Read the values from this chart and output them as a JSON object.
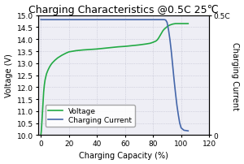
{
  "title": "Charging Characteristics @0.5C 25℃",
  "xlabel": "Charging Capacity (%)",
  "ylabel_left": "Voltage (V)",
  "ylabel_right": "Charging Current",
  "right_ytick_labels": [
    "0",
    "0.5C"
  ],
  "xlim": [
    -2,
    120
  ],
  "ylim_left": [
    10.0,
    15.0
  ],
  "ylim_right": [
    0,
    1
  ],
  "xticks": [
    0,
    20,
    40,
    60,
    80,
    100,
    120
  ],
  "yticks_left": [
    10.0,
    10.5,
    11.0,
    11.5,
    12.0,
    12.5,
    13.0,
    13.5,
    14.0,
    14.5,
    15.0
  ],
  "voltage_color": "#22aa44",
  "current_color": "#4466aa",
  "background_color": "#eeeef5",
  "grid_color": "#bbbbcc",
  "voltage_x": [
    0,
    0.3,
    0.6,
    1.0,
    1.5,
    2.0,
    2.5,
    3,
    4,
    5,
    6,
    7,
    8,
    10,
    12,
    15,
    18,
    20,
    25,
    30,
    35,
    40,
    45,
    50,
    55,
    60,
    65,
    70,
    75,
    78,
    80,
    82,
    83,
    84,
    85,
    86,
    87,
    88,
    89,
    90,
    91,
    92,
    93,
    94,
    95,
    96,
    97,
    98,
    99,
    100,
    101,
    102,
    103,
    105
  ],
  "voltage_y": [
    10.0,
    10.15,
    10.4,
    10.8,
    11.3,
    11.8,
    12.1,
    12.3,
    12.55,
    12.7,
    12.82,
    12.92,
    13.0,
    13.12,
    13.22,
    13.33,
    13.42,
    13.47,
    13.52,
    13.55,
    13.57,
    13.59,
    13.62,
    13.65,
    13.68,
    13.7,
    13.73,
    13.76,
    13.8,
    13.83,
    13.87,
    13.92,
    13.97,
    14.05,
    14.15,
    14.25,
    14.35,
    14.42,
    14.47,
    14.52,
    14.56,
    14.59,
    14.61,
    14.63,
    14.64,
    14.65,
    14.65,
    14.65,
    14.65,
    14.65,
    14.65,
    14.65,
    14.65,
    14.65
  ],
  "current_x": [
    0,
    1,
    5,
    10,
    20,
    30,
    40,
    50,
    60,
    70,
    80,
    83,
    85,
    87,
    88,
    89,
    90,
    91,
    92,
    93,
    94,
    95,
    96,
    97,
    98,
    99,
    100,
    102,
    105
  ],
  "current_y": [
    0.963,
    0.963,
    0.963,
    0.963,
    0.963,
    0.963,
    0.963,
    0.963,
    0.963,
    0.963,
    0.963,
    0.963,
    0.963,
    0.963,
    0.963,
    0.96,
    0.94,
    0.88,
    0.8,
    0.7,
    0.58,
    0.46,
    0.35,
    0.25,
    0.17,
    0.1,
    0.06,
    0.04,
    0.035
  ],
  "legend_voltage": "Voltage",
  "legend_current": "Charging Current",
  "title_fontsize": 9,
  "axis_label_fontsize": 7,
  "tick_fontsize": 6.5,
  "legend_fontsize": 6.5
}
